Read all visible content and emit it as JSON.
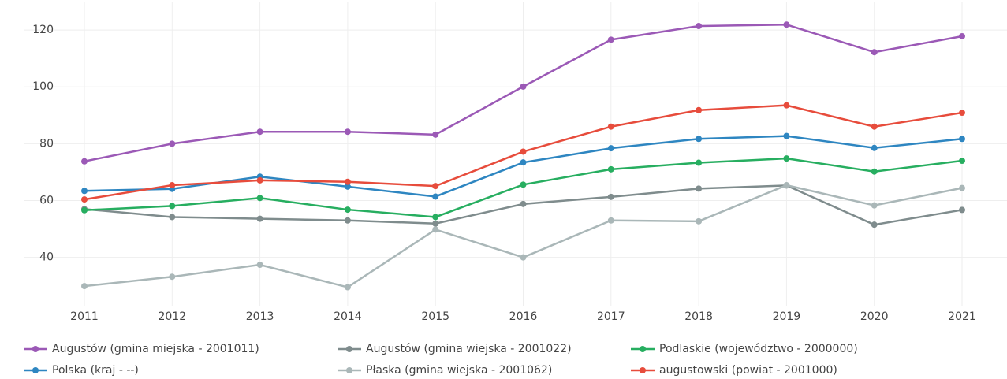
{
  "chart_data": {
    "type": "line",
    "x": [
      2011,
      2012,
      2013,
      2014,
      2015,
      2016,
      2017,
      2018,
      2019,
      2020,
      2021
    ],
    "xlim": [
      2011,
      2021
    ],
    "xticks": [
      2011,
      2012,
      2013,
      2014,
      2015,
      2016,
      2017,
      2018,
      2019,
      2020,
      2021
    ],
    "ylim": [
      23,
      130
    ],
    "yticks": [
      40,
      60,
      80,
      100,
      120
    ],
    "grid": true,
    "legend": "bottom",
    "series": [
      {
        "name": "Augustów (gmina miejska - 2001011)",
        "color": "#9b59b6",
        "values": [
          73.8,
          80,
          84.2,
          84.2,
          83.2,
          100.1,
          116.6,
          121.4,
          121.9,
          112.2,
          117.8
        ]
      },
      {
        "name": "Augustów (gmina wiejska - 2001022)",
        "color": "#7f8c8d",
        "values": [
          57,
          54.2,
          53.6,
          53,
          51.9,
          58.8,
          61.3,
          64.2,
          65.3,
          51.5,
          56.7
        ]
      },
      {
        "name": "Podlaskie (województwo - 2000000)",
        "color": "#27ae60",
        "values": [
          56.6,
          58.1,
          60.9,
          56.8,
          54.2,
          65.6,
          71,
          73.3,
          74.8,
          70.2,
          74
        ]
      },
      {
        "name": "Polska (kraj - --)",
        "color": "#2e86c1",
        "values": [
          63.4,
          64.1,
          68.4,
          64.9,
          61.4,
          73.4,
          78.4,
          81.7,
          82.7,
          78.5,
          81.7
        ]
      },
      {
        "name": "Płaska (gmina wiejska - 2001062)",
        "color": "#aab7b8",
        "values": [
          29.9,
          33.2,
          37.4,
          29.5,
          49.8,
          40,
          53,
          52.7,
          65.4,
          58.3,
          64.4
        ]
      },
      {
        "name": "augustowski (powiat - 2001000)",
        "color": "#e74c3c",
        "values": [
          60.4,
          65.4,
          67.1,
          66.6,
          65.1,
          77.2,
          86,
          91.8,
          93.5,
          86,
          90.9
        ]
      }
    ]
  }
}
